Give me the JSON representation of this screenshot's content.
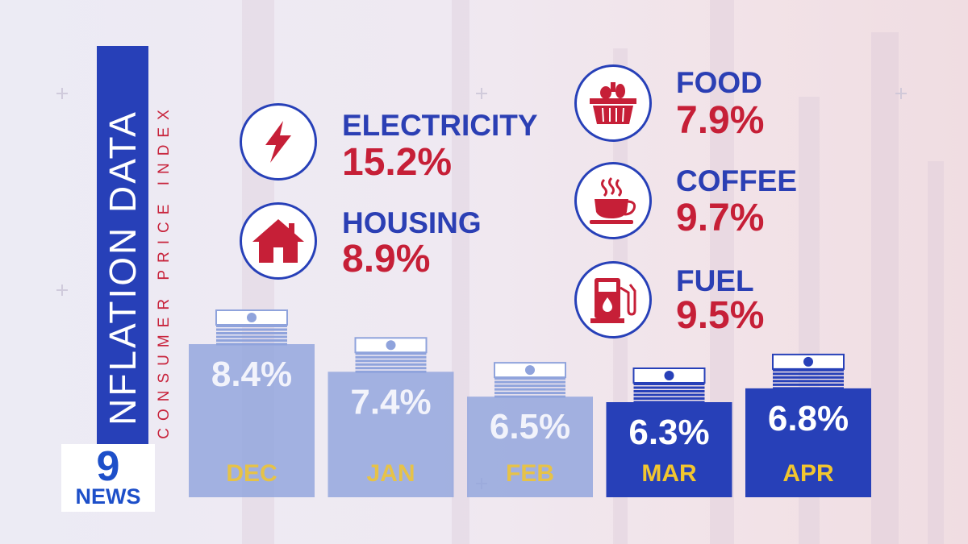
{
  "header": {
    "title": "NFLATION DATA",
    "subtitle": "CONSUMER PRICE INDEX"
  },
  "categories": [
    {
      "icon": "lightning-bolt-icon",
      "label": "ELECTRICITY",
      "value": "15.2%"
    },
    {
      "icon": "house-icon",
      "label": "HOUSING",
      "value": "8.9%"
    },
    {
      "icon": "shopping-basket-icon",
      "label": "FOOD",
      "value": "7.9%"
    },
    {
      "icon": "coffee-cup-icon",
      "label": "COFFEE",
      "value": "9.7%"
    },
    {
      "icon": "fuel-pump-icon",
      "label": "FUEL",
      "value": "9.5%"
    }
  ],
  "chart_data": {
    "type": "bar",
    "categories": [
      "DEC",
      "JAN",
      "FEB",
      "MAR",
      "APR"
    ],
    "values": [
      8.4,
      7.4,
      6.5,
      6.3,
      6.8
    ],
    "value_labels": [
      "8.4%",
      "7.4%",
      "6.5%",
      "6.3%",
      "6.8%"
    ],
    "ylim": [
      0,
      8.4
    ],
    "highlighted": [
      false,
      false,
      false,
      true,
      true
    ]
  },
  "colors": {
    "primary_blue": "#2740b8",
    "accent_red": "#c61f37",
    "month_label_yellow": "#f2c62f",
    "faded_bar": "#8fa3dc"
  },
  "branding": {
    "logo_number": "9",
    "logo_text": "NEWS"
  }
}
